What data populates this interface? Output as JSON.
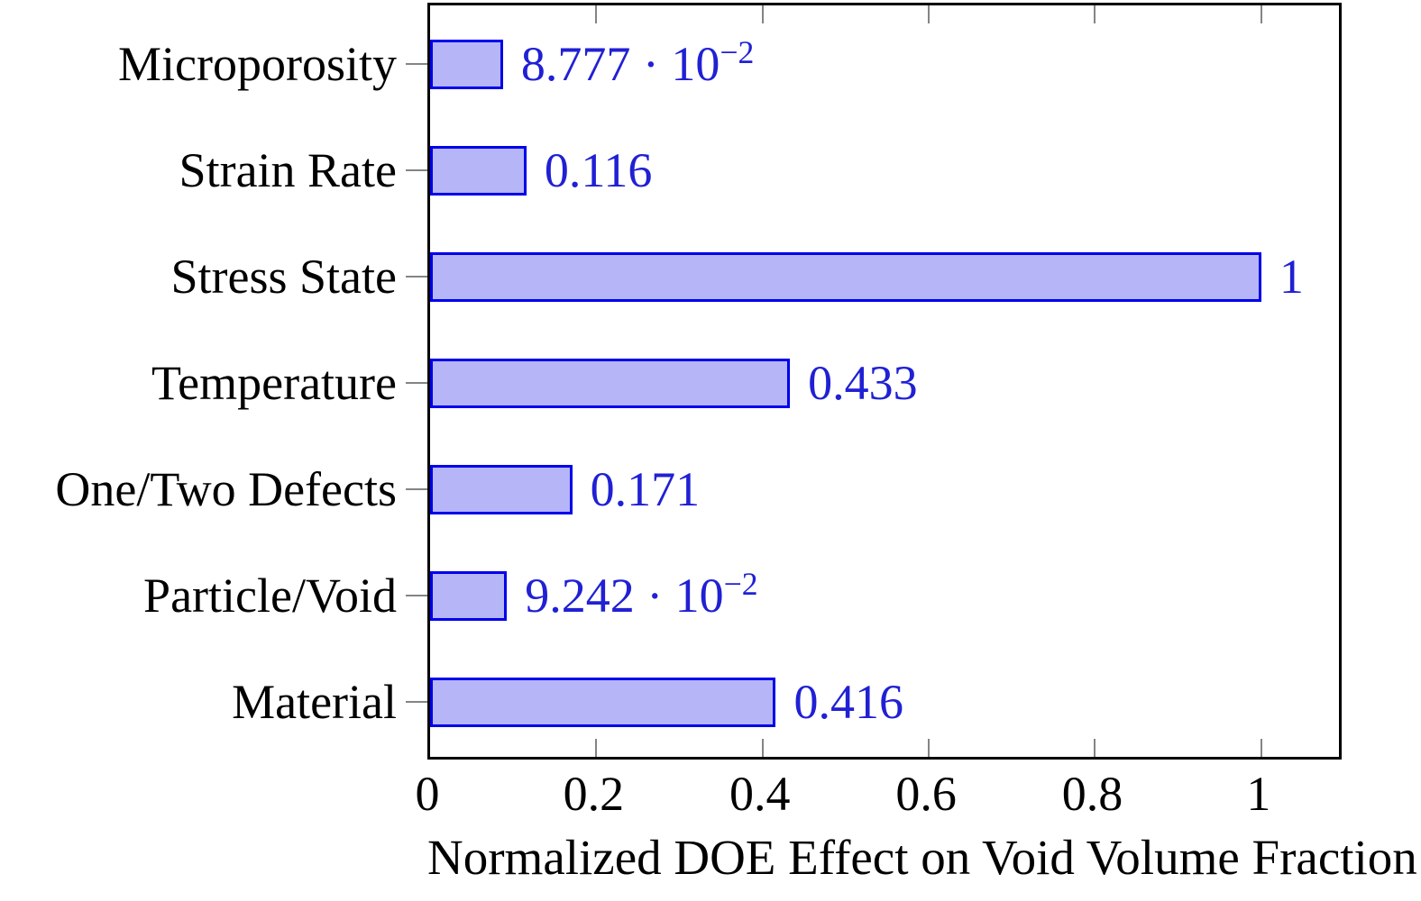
{
  "chart_data": {
    "type": "bar",
    "orientation": "horizontal",
    "title": "",
    "xlabel": "Normalized DOE Effect on Void Volume Fraction",
    "ylabel": "",
    "categories": [
      "Microporosity",
      "Strain Rate",
      "Stress State",
      "Temperature",
      "One/Two Defects",
      "Particle/Void",
      "Material"
    ],
    "values": [
      0.08777,
      0.116,
      1,
      0.433,
      0.171,
      0.09242,
      0.416
    ],
    "value_labels": [
      "8.777 · 10^−2",
      "0.116",
      "1",
      "0.433",
      "0.171",
      "9.242 · 10^−2",
      "0.416"
    ],
    "xticks": [
      0,
      0.2,
      0.4,
      0.6,
      0.8,
      1
    ],
    "xtick_labels": [
      "0",
      "0.2",
      "0.4",
      "0.6",
      "0.8",
      "1"
    ],
    "xlim": [
      0,
      1.1
    ],
    "grid": false,
    "legend": false,
    "colors": {
      "bar_fill": "#b5b5f7",
      "bar_border": "#0000eb",
      "value_label": "#2020d4",
      "axis": "#000000",
      "tick_mark": "#848484",
      "text": "#000000"
    }
  }
}
